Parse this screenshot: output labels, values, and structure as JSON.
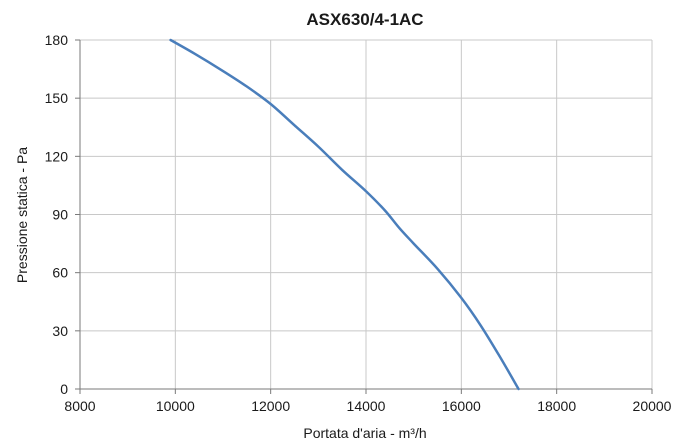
{
  "chart_data": {
    "type": "line",
    "title": "ASX630/4-1AC",
    "xlabel": "Portata d'aria - m³/h",
    "ylabel": "Pressione statica - Pa",
    "xlim": [
      8000,
      20000
    ],
    "ylim": [
      0,
      180
    ],
    "xticks": [
      8000,
      10000,
      12000,
      14000,
      16000,
      18000,
      20000
    ],
    "yticks": [
      0,
      30,
      60,
      90,
      120,
      150,
      180
    ],
    "grid": true,
    "legend": "none",
    "series": [
      {
        "color": "#4a7ebb",
        "points": [
          [
            9900,
            180
          ],
          [
            10400,
            173
          ],
          [
            11000,
            164
          ],
          [
            11500,
            156
          ],
          [
            12000,
            147
          ],
          [
            12500,
            136
          ],
          [
            13000,
            125
          ],
          [
            13500,
            113
          ],
          [
            14000,
            102
          ],
          [
            14400,
            92
          ],
          [
            14700,
            83
          ],
          [
            15000,
            75
          ],
          [
            15500,
            62
          ],
          [
            16000,
            47
          ],
          [
            16400,
            33
          ],
          [
            16800,
            17
          ],
          [
            17200,
            0
          ]
        ]
      }
    ]
  }
}
